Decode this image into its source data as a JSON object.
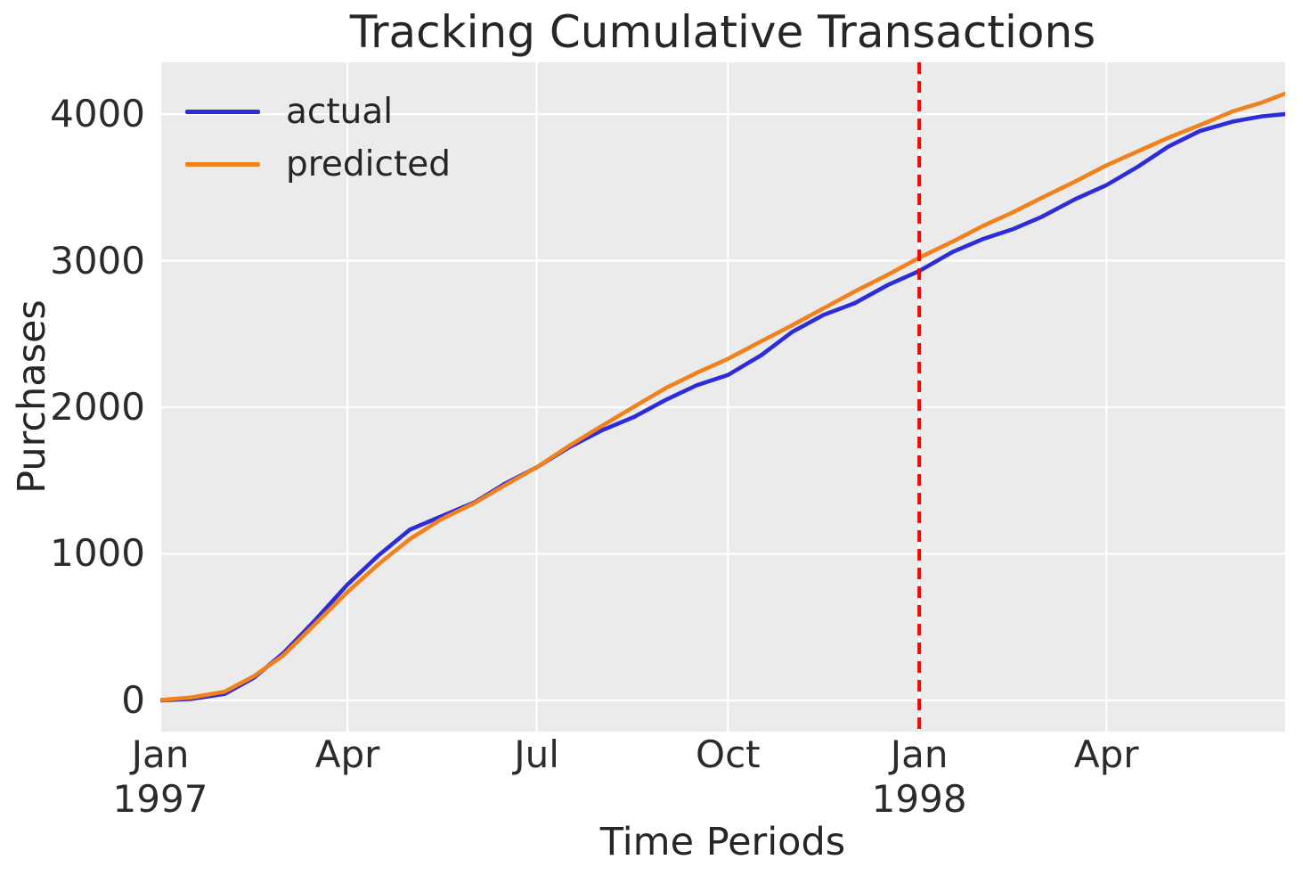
{
  "figure": {
    "title": "Tracking Cumulative Transactions",
    "background": "#ffffff",
    "text_color": "#262626"
  },
  "axes": {
    "xlabel": "Time Periods",
    "ylabel": "Purchases"
  },
  "legend": {
    "position": "upper left",
    "entries": [
      {
        "label": "actual",
        "color": "#2c2cd9"
      },
      {
        "label": "predicted",
        "color": "#f0811c"
      }
    ]
  },
  "chart_data": {
    "type": "line",
    "title": "Tracking Cumulative Transactions",
    "xlabel": "Time Periods",
    "ylabel": "Purchases",
    "x_unit": "days since 1997-01-01",
    "x": [
      0,
      15,
      31,
      45,
      59,
      74,
      90,
      105,
      120,
      135,
      151,
      166,
      181,
      197,
      212,
      228,
      243,
      258,
      273,
      289,
      304,
      319,
      334,
      350,
      365,
      381,
      396,
      410,
      424,
      440,
      455,
      470,
      485,
      500,
      516,
      530,
      541
    ],
    "series": [
      {
        "name": "actual",
        "color": "#2c2cd9",
        "values": [
          0,
          10,
          45,
          155,
          320,
          540,
          790,
          990,
          1165,
          1255,
          1350,
          1480,
          1590,
          1730,
          1840,
          1935,
          2050,
          2150,
          2220,
          2355,
          2515,
          2630,
          2710,
          2835,
          2930,
          3060,
          3150,
          3215,
          3300,
          3420,
          3515,
          3640,
          3780,
          3885,
          3950,
          3985,
          4000
        ]
      },
      {
        "name": "predicted",
        "color": "#f0811c",
        "values": [
          2,
          20,
          60,
          165,
          305,
          515,
          740,
          930,
          1100,
          1235,
          1345,
          1470,
          1590,
          1740,
          1870,
          2005,
          2130,
          2235,
          2330,
          2450,
          2560,
          2675,
          2790,
          2905,
          3020,
          3130,
          3240,
          3330,
          3430,
          3540,
          3650,
          3745,
          3840,
          3925,
          4020,
          4080,
          4140
        ]
      }
    ],
    "vline": {
      "x": 365,
      "color": "#ff0000",
      "style": "dashed"
    },
    "xticks": [
      {
        "pos": 0,
        "label": "Jan",
        "sub": "1997"
      },
      {
        "pos": 90,
        "label": "Apr"
      },
      {
        "pos": 181,
        "label": "Jul"
      },
      {
        "pos": 273,
        "label": "Oct"
      },
      {
        "pos": 365,
        "label": "Jan",
        "sub": "1998"
      },
      {
        "pos": 455,
        "label": "Apr"
      }
    ],
    "yticks": [
      0,
      1000,
      2000,
      3000,
      4000
    ],
    "xlim": [
      0,
      541
    ],
    "ylim": [
      -213,
      4353
    ],
    "grid": true,
    "grid_color": "#ffffff",
    "plot_bg": "#ebebeb",
    "legend_position": "upper left"
  }
}
